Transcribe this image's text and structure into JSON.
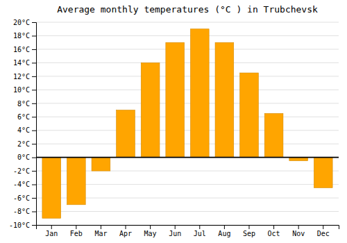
{
  "chart_data": {
    "type": "bar",
    "title": "Average monthly temperatures (°C ) in Trubchevsk",
    "categories": [
      "Jan",
      "Feb",
      "Mar",
      "Apr",
      "May",
      "Jun",
      "Jul",
      "Aug",
      "Sep",
      "Oct",
      "Nov",
      "Dec"
    ],
    "values": [
      -9,
      -7,
      -2,
      7,
      14,
      17,
      19,
      17,
      12.5,
      6.5,
      -0.5,
      -4.5
    ],
    "color": "#FFA500",
    "ylim": [
      -10,
      20
    ],
    "yticks": [
      {
        "value": -10,
        "label": "-10°C"
      },
      {
        "value": -8,
        "label": "-8°C"
      },
      {
        "value": -6,
        "label": "-6°C"
      },
      {
        "value": -4,
        "label": "-4°C"
      },
      {
        "value": -2,
        "label": "-2°C"
      },
      {
        "value": 0,
        "label": "0°C"
      },
      {
        "value": 2,
        "label": "2°C"
      },
      {
        "value": 4,
        "label": "4°C"
      },
      {
        "value": 6,
        "label": "6°C"
      },
      {
        "value": 8,
        "label": "8°C"
      },
      {
        "value": 10,
        "label": "10°C"
      },
      {
        "value": 12,
        "label": "12°C"
      },
      {
        "value": 14,
        "label": "14°C"
      },
      {
        "value": 16,
        "label": "16°C"
      },
      {
        "value": 18,
        "label": "18°C"
      },
      {
        "value": 20,
        "label": "20°C"
      }
    ],
    "grid": true
  }
}
